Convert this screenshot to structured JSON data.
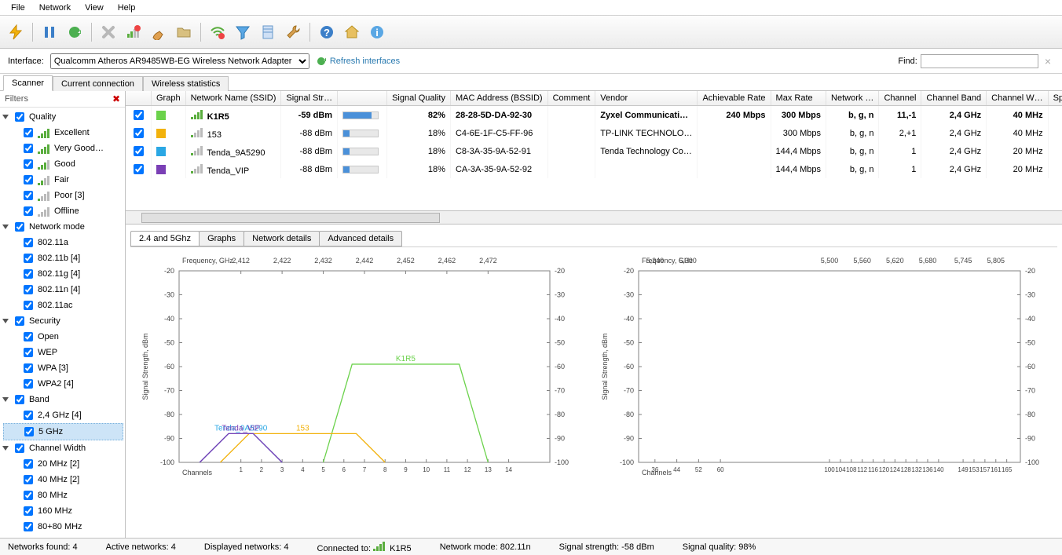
{
  "menu": {
    "items": [
      "File",
      "Network",
      "View",
      "Help"
    ]
  },
  "toolbar_icons": [
    "flash",
    "pause",
    "refresh",
    "stop",
    "clear-signal",
    "brush",
    "folder",
    "wifi-alert",
    "funnel",
    "notebook",
    "wrench",
    "help",
    "home",
    "info"
  ],
  "interface_row": {
    "label": "Interface:",
    "adapter": "Qualcomm Atheros AR9485WB-EG Wireless Network Adapter",
    "refresh_label": "Refresh interfaces",
    "find_label": "Find:",
    "find_value": ""
  },
  "top_tabs": [
    "Scanner",
    "Current connection",
    "Wireless statistics"
  ],
  "filters": {
    "title": "Filters",
    "groups": [
      {
        "name": "Quality",
        "items": [
          "Excellent",
          "Very Good…",
          "Good",
          "Fair",
          "Poor [3]",
          "Offline"
        ]
      },
      {
        "name": "Network mode",
        "items": [
          "802.11a",
          "802.11b [4]",
          "802.11g [4]",
          "802.11n [4]",
          "802.11ac"
        ]
      },
      {
        "name": "Security",
        "items": [
          "Open",
          "WEP",
          "WPA [3]",
          "WPA2 [4]"
        ]
      },
      {
        "name": "Band",
        "items": [
          "2,4 GHz [4]",
          "5 GHz"
        ],
        "selected": "5 GHz"
      },
      {
        "name": "Channel Width",
        "items": [
          "20 MHz [2]",
          "40 MHz [2]",
          "80 MHz",
          "160 MHz",
          "80+80 MHz"
        ]
      }
    ]
  },
  "columns": [
    "",
    "Graph",
    "Network Name (SSID)",
    "Signal Str…",
    "",
    "Signal Quality",
    "MAC Address (BSSID)",
    "Comment",
    "Vendor",
    "Achievable Rate",
    "Max Rate",
    "Network …",
    "Channel",
    "Channel Band",
    "Channel W…",
    "Sp…"
  ],
  "rows": [
    {
      "color": "#6bd24b",
      "ssid": "K1R5",
      "str": "-59 dBm",
      "sq": 82,
      "mac": "28-28-5D-DA-92-30",
      "vendor": "Zyxel Communicati…",
      "ach": "240 Mbps",
      "max": "300 Mbps",
      "mode": "b, g, n",
      "ch": "11,-1",
      "band": "2,4 GHz",
      "cw": "40 MHz",
      "bold": true,
      "sig": 4
    },
    {
      "color": "#f2b20c",
      "ssid": "153",
      "str": "-88 dBm",
      "sq": 18,
      "mac": "C4-6E-1F-C5-FF-96",
      "vendor": "TP-LINK TECHNOLO…",
      "ach": "",
      "max": "300 Mbps",
      "mode": "b, g, n",
      "ch": "2,+1",
      "band": "2,4 GHz",
      "cw": "40 MHz",
      "sig": 1
    },
    {
      "color": "#2aa7e4",
      "ssid": "Tenda_9A5290",
      "str": "-88 dBm",
      "sq": 18,
      "mac": "C8-3A-35-9A-52-91",
      "vendor": "Tenda Technology Co…",
      "ach": "",
      "max": "144,4 Mbps",
      "mode": "b, g, n",
      "ch": "1",
      "band": "2,4 GHz",
      "cw": "20 MHz",
      "sig": 1
    },
    {
      "color": "#7a3fb5",
      "ssid": "Tenda_VIP",
      "str": "-88 dBm",
      "sq": 18,
      "mac": "CA-3A-35-9A-52-92",
      "vendor": "",
      "ach": "",
      "max": "144,4 Mbps",
      "mode": "b, g, n",
      "ch": "1",
      "band": "2,4 GHz",
      "cw": "20 MHz",
      "sig": 1
    }
  ],
  "sub_tabs": [
    "2.4 and 5Ghz",
    "Graphs",
    "Network details",
    "Advanced details"
  ],
  "chart24": {
    "title_axis_y": "Signal Strength, dBm",
    "title_axis_x": "Channels",
    "freq_label": "Frequency, GHz",
    "y_min": -100,
    "y_max": -20,
    "freq_ticks": [
      2.412,
      2.422,
      2.432,
      2.442,
      2.452,
      2.462,
      2.472
    ],
    "ch_ticks": [
      1,
      2,
      3,
      4,
      5,
      6,
      7,
      8,
      9,
      10,
      11,
      12,
      13,
      14
    ],
    "gridcolor": "#d0d0d0",
    "axiscolor": "#808080",
    "bg": "#ffffff",
    "label_fontsize": 9,
    "nets": [
      {
        "label": "K1R5",
        "color": "#6bd24b",
        "ch_low": 5,
        "ch_high": 13,
        "dbm": -59
      },
      {
        "label": "153",
        "color": "#f2b20c",
        "ch_low": 0,
        "ch_high": 8,
        "dbm": -88
      },
      {
        "label": "Tenda_9A5290",
        "color": "#2aa7e4",
        "ch_low": -1,
        "ch_high": 3,
        "dbm": -88
      },
      {
        "label": "Tenda_VIP",
        "color": "#7a3fb5",
        "ch_low": -1,
        "ch_high": 3,
        "dbm": -88
      }
    ]
  },
  "chart5": {
    "title_axis_y": "Signal Strength, dBm",
    "title_axis_x": "Channels",
    "freq_label": "Frequency, GHz",
    "y_min": -100,
    "y_max": -20,
    "freq_ticks": [
      5.24,
      5.3,
      5.5,
      5.56,
      5.62,
      5.68,
      5.745,
      5.805
    ],
    "ch_ticks": [
      36,
      44,
      52,
      60,
      100,
      104,
      108,
      112,
      116,
      120,
      124,
      128,
      132,
      136,
      140,
      149,
      153,
      157,
      161,
      165
    ],
    "gridcolor": "#d0d0d0",
    "axiscolor": "#808080",
    "bg": "#ffffff"
  },
  "status": {
    "found": "Networks found: 4",
    "active": "Active networks: 4",
    "displayed": "Displayed networks: 4",
    "connected_label": "Connected to:",
    "connected_name": "K1R5",
    "mode": "Network mode: 802.11n",
    "strength": "Signal strength: -58 dBm",
    "quality": "Signal quality: 98%"
  }
}
